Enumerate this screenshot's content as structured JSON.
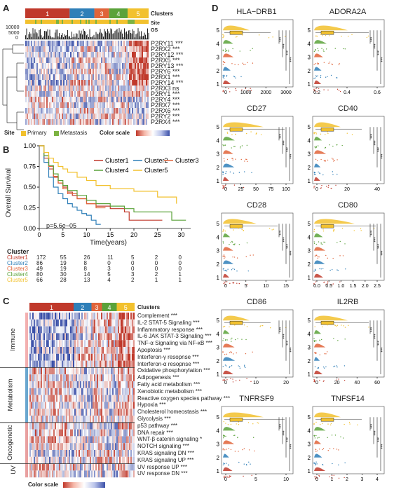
{
  "panels": {
    "A": {
      "letter": "A",
      "cluster_labels": [
        "1",
        "2",
        "3",
        "4",
        "5"
      ],
      "cluster_colors": [
        "#c0392b",
        "#2f7fb8",
        "#e0643a",
        "#5aa23a",
        "#f2c12e"
      ],
      "clusters_label": "Clusters",
      "site_label": "Site",
      "os_label": "OS",
      "os_ticks": [
        "10000",
        "5000",
        "0"
      ],
      "genes": [
        "P2RY11 ***",
        "P2RX2 ***",
        "P2RY12 ***",
        "P2RX5 ***",
        "P2RY13 ***",
        "P2RY6 ***",
        "P2RX1 ***",
        "P2RY14 ***",
        "P2RX3 ns",
        "P2RY1 ***",
        "P2RY4 ***",
        "P2RX7 ***",
        "P2RX6 ***",
        "P2RY2 ***",
        "P2RX4 ***"
      ],
      "legend": {
        "site": "Site",
        "primary": "Primary",
        "metastasis": "Metastasis",
        "color_scale": "Color scale"
      }
    },
    "B": {
      "letter": "B",
      "ylabel": "Overall Survival",
      "xlabel": "Time(years)",
      "pvalue": "p=5.6e−05",
      "risk_title": "Cluster",
      "risk_rows": [
        {
          "name": "Cluster1",
          "values": [
            "172",
            "55",
            "26",
            "11",
            "5",
            "2",
            "0"
          ]
        },
        {
          "name": "Cluster2",
          "values": [
            "86",
            "19",
            "8",
            "0",
            "0",
            "0",
            "0"
          ]
        },
        {
          "name": "Cluster3",
          "values": [
            "49",
            "19",
            "8",
            "3",
            "0",
            "0",
            "0"
          ]
        },
        {
          "name": "Cluster4",
          "values": [
            "80",
            "30",
            "14",
            "5",
            "3",
            "2",
            "1"
          ]
        },
        {
          "name": "Cluster5",
          "values": [
            "66",
            "28",
            "13",
            "4",
            "2",
            "1",
            "1"
          ]
        }
      ]
    },
    "C": {
      "letter": "C",
      "clusters_label": "Clusters",
      "groups": [
        "Immune",
        "Metabolism",
        "Oncogenetic",
        "UV"
      ],
      "pathways": [
        "Complement ***",
        "IL-2 STAT-5 Signaling ***",
        "Inflammatory response ***",
        "IL-6 JAK STAT-3 Signaling ***",
        "TNF-α Signaling via NF-κB ***",
        "Apoptosis ***",
        "Interferon-γ resopnse ***",
        "Interferon-α resopnse ***",
        "Oxidative phosphorylation ***",
        "Adipogenesis ***",
        "Fatty acid metabolism ***",
        "Xenobiotic metabolism ***",
        "Reactive oxygen species pathway ***",
        "Hypoxia ***",
        "Cholesterol homeostasis ***",
        "Glycolysis ***",
        "p53 pathway ***",
        "DNA repair ***",
        "WNT-β catenin signaling *",
        "NOTCH signaling ***",
        "KRAS signaling DN ***",
        "KRAS signaling UP ***",
        "UV response UP ***",
        "UV response DN ***"
      ],
      "color_scale": "Color scale"
    },
    "D": {
      "letter": "D",
      "row_labels": [
        "5",
        "4",
        "3",
        "2",
        "1"
      ],
      "sig": "***",
      "plots": [
        {
          "title": "HLA−DRB1",
          "ticks": [
            "0",
            "1000",
            "2000",
            "3000"
          ]
        },
        {
          "title": "ADORA2A",
          "ticks": [
            "0.2",
            "0.4",
            "0.6"
          ]
        },
        {
          "title": "CD27",
          "ticks": [
            "0",
            "25",
            "50",
            "75",
            "100"
          ]
        },
        {
          "title": "CD40",
          "ticks": [
            "0",
            "20",
            "40"
          ]
        },
        {
          "title": "CD28",
          "ticks": [
            "0",
            "5",
            "10",
            "15"
          ]
        },
        {
          "title": "CD80",
          "ticks": [
            "0.0",
            "0.5",
            "1.0",
            "1.5",
            "2.0",
            "2.5"
          ]
        },
        {
          "title": "CD86",
          "ticks": [
            "0",
            "10",
            "20"
          ]
        },
        {
          "title": "IL2RB",
          "ticks": [
            "0",
            "20",
            "40",
            "60"
          ]
        },
        {
          "title": "TNFRSF9",
          "ticks": [
            "0",
            "5",
            "10"
          ]
        },
        {
          "title": "TNFSF14",
          "ticks": [
            "0",
            "1",
            "2",
            "3",
            "4"
          ]
        }
      ]
    }
  },
  "chart_data": [
    {
      "type": "line",
      "title": "",
      "xlabel": "Time(years)",
      "ylabel": "Overall Survival",
      "xlim": [
        0,
        32
      ],
      "ylim": [
        0,
        1
      ],
      "x_ticks": [
        0,
        5,
        10,
        15,
        20,
        25,
        30
      ],
      "y_ticks": [
        0.0,
        0.25,
        0.5,
        0.75,
        1.0
      ],
      "legend": "top-right",
      "series": [
        {
          "name": "Cluster1",
          "color": "#c0392b",
          "x": [
            0,
            1,
            2,
            3,
            4,
            5,
            6,
            7,
            8,
            10,
            12,
            15,
            18,
            19,
            20,
            25,
            26
          ],
          "y": [
            1,
            0.85,
            0.72,
            0.62,
            0.55,
            0.5,
            0.44,
            0.4,
            0.36,
            0.3,
            0.27,
            0.24,
            0.2,
            0.1,
            0.1,
            0.1,
            0.1
          ]
        },
        {
          "name": "Cluster2",
          "color": "#2f7fb8",
          "x": [
            0,
            1,
            2,
            3,
            4,
            5,
            6,
            7,
            8,
            9,
            10,
            11,
            12,
            13
          ],
          "y": [
            1,
            0.8,
            0.62,
            0.5,
            0.42,
            0.36,
            0.3,
            0.26,
            0.22,
            0.18,
            0.16,
            0.1,
            0.05,
            0.05
          ]
        },
        {
          "name": "Cluster3",
          "color": "#e0643a",
          "x": [
            0,
            1,
            2,
            3,
            4,
            5,
            6,
            8,
            10,
            12,
            14
          ],
          "y": [
            1,
            0.88,
            0.75,
            0.63,
            0.55,
            0.48,
            0.42,
            0.36,
            0.3,
            0.25,
            0.25
          ]
        },
        {
          "name": "Cluster4",
          "color": "#5aa23a",
          "x": [
            0,
            1,
            2,
            3,
            4,
            5,
            6,
            8,
            10,
            12,
            15,
            18,
            20,
            25,
            28,
            31
          ],
          "y": [
            1,
            0.88,
            0.76,
            0.66,
            0.58,
            0.52,
            0.46,
            0.4,
            0.34,
            0.3,
            0.27,
            0.24,
            0.2,
            0.2,
            0.1,
            0.1
          ]
        },
        {
          "name": "Cluster5",
          "color": "#f2c12e",
          "x": [
            0,
            1,
            2,
            3,
            4,
            5,
            6,
            8,
            10,
            12,
            15,
            20,
            25,
            29
          ],
          "y": [
            1,
            0.92,
            0.85,
            0.8,
            0.75,
            0.72,
            0.68,
            0.62,
            0.58,
            0.52,
            0.48,
            0.45,
            0.38,
            0.3
          ]
        }
      ]
    }
  ]
}
